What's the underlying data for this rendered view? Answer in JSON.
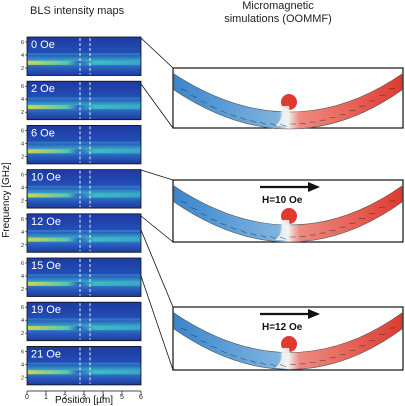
{
  "titles": {
    "left": "BLS intensity maps",
    "right_line1": "Micromagnetic",
    "right_line2": "simulations (OOMMF)"
  },
  "panel_labels": [
    "0 Oe",
    "2 Oe",
    "6 Oe",
    "10 Oe",
    "12 Oe",
    "15 Oe",
    "19 Oe",
    "21 Oe"
  ],
  "y_axis": {
    "label": "Frequency [GHz]",
    "ticks": [
      "6",
      "4",
      "2"
    ]
  },
  "x_axis": {
    "label": "Position [µm]",
    "ticks": [
      "0",
      "1",
      "2",
      "3",
      "4",
      "5",
      "6"
    ]
  },
  "simulations": [
    {
      "field_label": "",
      "arrow": false
    },
    {
      "field_label": "H=10 Oe",
      "arrow": true
    },
    {
      "field_label": "H=12 Oe",
      "arrow": true
    }
  ],
  "colors": {
    "map_background": "#1f3fa8",
    "map_band": "#37c6c0",
    "map_hot": "#f2e23a",
    "domain_blue": "#3a86cc",
    "domain_red": "#e03a30"
  }
}
